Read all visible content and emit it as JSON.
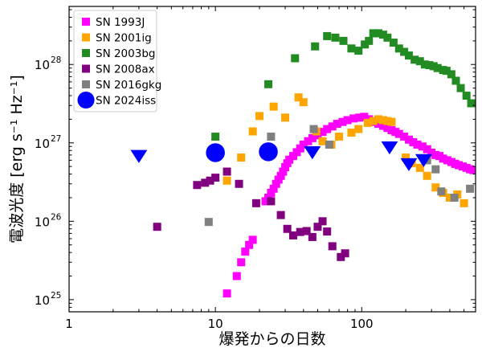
{
  "chart_data": {
    "type": "scatter",
    "xlabel": "爆発からの日数",
    "ylabel": "電波光度 [erg s⁻¹ Hz⁻¹]",
    "x_scale": "log",
    "y_scale": "log",
    "xlim": [
      1,
      600
    ],
    "ylim": [
      7e+24,
      5.5e+28
    ],
    "x_ticks": [
      {
        "value": 1,
        "label": "1"
      },
      {
        "value": 10,
        "label": "10"
      },
      {
        "value": 100,
        "label": "100"
      }
    ],
    "y_ticks": [
      {
        "value": 1e+25,
        "base": "10",
        "exp": "25"
      },
      {
        "value": 1e+26,
        "base": "10",
        "exp": "26"
      },
      {
        "value": 1e+27,
        "base": "10",
        "exp": "27"
      },
      {
        "value": 1e+28,
        "base": "10",
        "exp": "28"
      }
    ],
    "grid": false,
    "legend_position": "top-left",
    "series": [
      {
        "name": "SN 1993J",
        "color": "#ff00ff",
        "marker": "square",
        "points": [
          [
            12,
            1.2e+25
          ],
          [
            14,
            2e+25
          ],
          [
            15,
            3e+25
          ],
          [
            16,
            4.1e+25
          ],
          [
            17,
            5e+25
          ],
          [
            18,
            5.8e+25
          ],
          [
            22,
            1.8e+26
          ],
          [
            23,
            2e+26
          ],
          [
            24,
            2.3e+26
          ],
          [
            25,
            2.6e+26
          ],
          [
            26,
            3e+26
          ],
          [
            27,
            3.4e+26
          ],
          [
            28,
            3.8e+26
          ],
          [
            29,
            4.3e+26
          ],
          [
            30,
            4.9e+26
          ],
          [
            31,
            5.5e+26
          ],
          [
            32,
            6.1e+26
          ],
          [
            34,
            6.8e+26
          ],
          [
            36,
            7.6e+26
          ],
          [
            38,
            8.5e+26
          ],
          [
            40,
            9.5e+26
          ],
          [
            43,
            1.05e+27
          ],
          [
            46,
            1.15e+27
          ],
          [
            50,
            1.25e+27
          ],
          [
            54,
            1.38e+27
          ],
          [
            58,
            1.5e+27
          ],
          [
            63,
            1.62e+27
          ],
          [
            68,
            1.75e+27
          ],
          [
            74,
            1.85e+27
          ],
          [
            80,
            1.95e+27
          ],
          [
            88,
            2.05e+27
          ],
          [
            96,
            2.1e+27
          ],
          [
            104,
            2.15e+27
          ],
          [
            112,
            2e+27
          ],
          [
            120,
            1.85e+27
          ],
          [
            130,
            1.75e+27
          ],
          [
            140,
            1.65e+27
          ],
          [
            150,
            1.55e+27
          ],
          [
            160,
            1.45e+27
          ],
          [
            170,
            1.38e+27
          ],
          [
            180,
            1.3e+27
          ],
          [
            195,
            1.2e+27
          ],
          [
            210,
            1.1e+27
          ],
          [
            225,
            1.02e+27
          ],
          [
            240,
            9.5e+26
          ],
          [
            260,
            9e+26
          ],
          [
            280,
            8.3e+26
          ],
          [
            300,
            7.5e+26
          ],
          [
            320,
            7e+26
          ],
          [
            340,
            6.8e+26
          ],
          [
            360,
            6.3e+26
          ],
          [
            385,
            6e+26
          ],
          [
            410,
            5.7e+26
          ],
          [
            435,
            5.4e+26
          ],
          [
            460,
            5.2e+26
          ],
          [
            490,
            5e+26
          ],
          [
            520,
            4.8e+26
          ],
          [
            550,
            4.6e+26
          ],
          [
            580,
            4.5e+26
          ]
        ]
      },
      {
        "name": "SN 2001ig",
        "color": "#ffa500",
        "marker": "square",
        "points": [
          [
            12,
            3.3e+26
          ],
          [
            15,
            6.5e+26
          ],
          [
            18,
            1.4e+27
          ],
          [
            20,
            2.2e+27
          ],
          [
            25,
            2.9e+27
          ],
          [
            30,
            2.1e+27
          ],
          [
            37,
            3.8e+27
          ],
          [
            40,
            3.3e+27
          ],
          [
            49,
            1.4e+27
          ],
          [
            54,
            1.05e+27
          ],
          [
            62,
            9.5e+26
          ],
          [
            70,
            1.2e+27
          ],
          [
            85,
            1.35e+27
          ],
          [
            95,
            1.5e+27
          ],
          [
            110,
            1.8e+27
          ],
          [
            120,
            1.9e+27
          ],
          [
            130,
            2e+27
          ],
          [
            140,
            1.95e+27
          ],
          [
            150,
            1.9e+27
          ],
          [
            160,
            1.85e+27
          ],
          [
            200,
            6.5e+26
          ],
          [
            220,
            5.5e+26
          ],
          [
            250,
            4.8e+26
          ],
          [
            280,
            3.8e+26
          ],
          [
            320,
            2.7e+26
          ],
          [
            360,
            2.3e+26
          ],
          [
            400,
            2e+26
          ],
          [
            450,
            2.2e+26
          ],
          [
            500,
            1.7e+26
          ]
        ]
      },
      {
        "name": "SN 2003bg",
        "color": "#228b22",
        "marker": "square",
        "points": [
          [
            10,
            1.2e+27
          ],
          [
            23,
            5.6e+27
          ],
          [
            35,
            1.2e+28
          ],
          [
            48,
            1.7e+28
          ],
          [
            58,
            2.3e+28
          ],
          [
            66,
            2.2e+28
          ],
          [
            75,
            2e+28
          ],
          [
            85,
            1.6e+28
          ],
          [
            95,
            1.5e+28
          ],
          [
            105,
            1.8e+28
          ],
          [
            112,
            2e+28
          ],
          [
            120,
            2.5e+28
          ],
          [
            130,
            2.5e+28
          ],
          [
            140,
            2.4e+28
          ],
          [
            150,
            2.2e+28
          ],
          [
            165,
            1.9e+28
          ],
          [
            180,
            1.6e+28
          ],
          [
            195,
            1.45e+28
          ],
          [
            210,
            1.3e+28
          ],
          [
            230,
            1.15e+28
          ],
          [
            250,
            1.1e+28
          ],
          [
            270,
            1e+28
          ],
          [
            290,
            9.8e+27
          ],
          [
            310,
            9.5e+27
          ],
          [
            330,
            9e+27
          ],
          [
            360,
            8.5e+27
          ],
          [
            380,
            8.3e+27
          ],
          [
            410,
            7.5e+27
          ],
          [
            440,
            6.2e+27
          ],
          [
            475,
            5e+27
          ],
          [
            520,
            4e+27
          ],
          [
            560,
            3.2e+27
          ]
        ]
      },
      {
        "name": "SN 2008ax",
        "color": "#800080",
        "marker": "square",
        "points": [
          [
            4,
            8.5e+25
          ],
          [
            7.5,
            2.9e+26
          ],
          [
            8.5,
            3.1e+26
          ],
          [
            9.2,
            3.3e+26
          ],
          [
            10,
            3.6e+26
          ],
          [
            12,
            4.3e+26
          ],
          [
            14.5,
            3e+26
          ],
          [
            19,
            1.7e+26
          ],
          [
            24,
            1.8e+26
          ],
          [
            28,
            1.2e+26
          ],
          [
            31,
            8e+25
          ],
          [
            34,
            6.6e+25
          ],
          [
            38,
            7.3e+25
          ],
          [
            42,
            7.5e+25
          ],
          [
            46,
            6.3e+25
          ],
          [
            50,
            8.5e+25
          ],
          [
            54,
            1e+26
          ],
          [
            58,
            7.4e+25
          ],
          [
            63,
            4.8e+25
          ],
          [
            72,
            3.5e+25
          ],
          [
            77,
            3.9e+25
          ]
        ]
      },
      {
        "name": "SN 2016gkg",
        "color": "#808080",
        "marker": "square",
        "points": [
          [
            9,
            9.8e+25
          ],
          [
            24,
            1.2e+27
          ],
          [
            47,
            1.5e+27
          ],
          [
            60,
            9.5e+26
          ],
          [
            280,
            6e+26
          ],
          [
            320,
            4.6e+26
          ],
          [
            350,
            2.4e+26
          ],
          [
            430,
            2e+26
          ],
          [
            550,
            2.6e+26
          ]
        ]
      },
      {
        "name": "SN 2024iss",
        "color": "#0000ff",
        "marker": "circle",
        "points": [
          [
            10,
            7.5e+26
          ],
          [
            23,
            7.7e+26
          ]
        ]
      },
      {
        "name": "",
        "color": "#0000ff",
        "marker": "triangle-down",
        "points": [
          [
            3,
            7e+26
          ],
          [
            46,
            7.8e+26
          ],
          [
            155,
            9e+26
          ],
          [
            210,
            5.5e+26
          ],
          [
            265,
            6.2e+26
          ]
        ]
      }
    ]
  }
}
